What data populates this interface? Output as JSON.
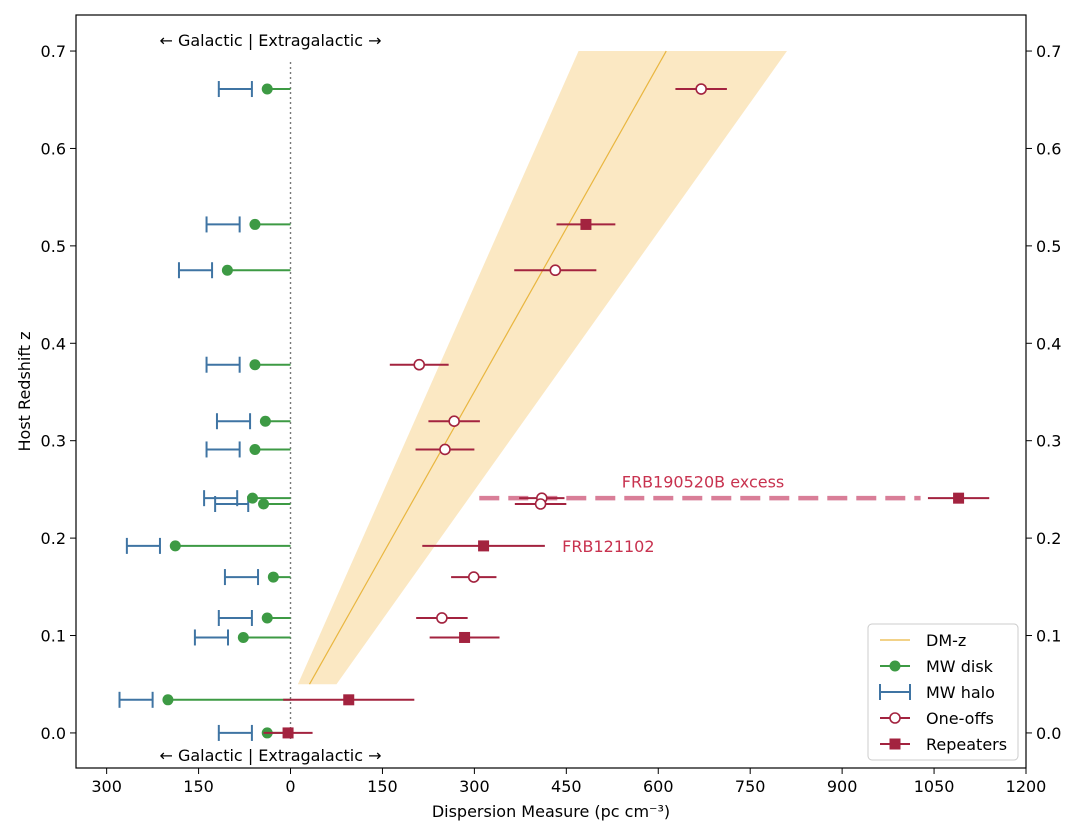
{
  "chart_data": {
    "type": "scatter",
    "xlabel": "Dispersion Measure (pc cm⁻³)",
    "ylabel": "Host Redshift z",
    "xlim": [
      -350,
      1200
    ],
    "ylim": [
      -0.036,
      0.737
    ],
    "x_reversed_negative_side": true,
    "x_ticks": [
      -300,
      -150,
      0,
      150,
      300,
      450,
      600,
      750,
      900,
      1050,
      1200
    ],
    "x_tick_labels": [
      "300",
      "150",
      "0",
      "150",
      "300",
      "450",
      "600",
      "750",
      "900",
      "1050",
      "1200"
    ],
    "y_ticks": [
      0.0,
      0.1,
      0.2,
      0.3,
      0.4,
      0.5,
      0.6,
      0.7
    ],
    "y_tick_labels": [
      "0.0",
      "0.1",
      "0.2",
      "0.3",
      "0.4",
      "0.5",
      "0.6",
      "0.7"
    ],
    "grid": false,
    "top_annotation": "← Galactic | Extragalactic →",
    "bottom_annotation": "← Galactic | Extragalactic →",
    "dmz_curve": {
      "name": "DM-z",
      "color": "#e9b640",
      "band_color": "#fbe8c3",
      "line": [
        [
          31,
          0.05
        ],
        [
          613,
          0.7
        ]
      ],
      "band": [
        [
          12,
          0.05
        ],
        [
          470,
          0.7
        ],
        [
          810,
          0.7
        ],
        [
          75,
          0.05
        ]
      ]
    },
    "mw_disk": {
      "name": "MW disk",
      "color": "#3d9a44",
      "points": [
        {
          "x": -38,
          "z": 0.661
        },
        {
          "x": -58,
          "z": 0.522
        },
        {
          "x": -103,
          "z": 0.475
        },
        {
          "x": -58,
          "z": 0.378
        },
        {
          "x": -41,
          "z": 0.32
        },
        {
          "x": -58,
          "z": 0.291
        },
        {
          "x": -62,
          "z": 0.241
        },
        {
          "x": -44,
          "z": 0.235
        },
        {
          "x": -188,
          "z": 0.192
        },
        {
          "x": -28,
          "z": 0.16
        },
        {
          "x": -38,
          "z": 0.118
        },
        {
          "x": -77,
          "z": 0.098
        },
        {
          "x": -200,
          "z": 0.034
        },
        {
          "x": -38,
          "z": 0.0
        }
      ]
    },
    "mw_halo": {
      "name": "MW halo",
      "color": "#3f74a3",
      "ranges": [
        {
          "x1": -117,
          "x2": -63,
          "z": 0.661
        },
        {
          "x1": -137,
          "x2": -83,
          "z": 0.522
        },
        {
          "x1": -182,
          "x2": -128,
          "z": 0.475
        },
        {
          "x1": -137,
          "x2": -83,
          "z": 0.378
        },
        {
          "x1": -120,
          "x2": -66,
          "z": 0.32
        },
        {
          "x1": -137,
          "x2": -83,
          "z": 0.291
        },
        {
          "x1": -141,
          "x2": -87,
          "z": 0.241
        },
        {
          "x1": -123,
          "x2": -69,
          "z": 0.235
        },
        {
          "x1": -267,
          "x2": -213,
          "z": 0.192
        },
        {
          "x1": -107,
          "x2": -53,
          "z": 0.16
        },
        {
          "x1": -117,
          "x2": -63,
          "z": 0.118
        },
        {
          "x1": -156,
          "x2": -102,
          "z": 0.098
        },
        {
          "x1": -279,
          "x2": -225,
          "z": 0.034
        },
        {
          "x1": -117,
          "x2": -63,
          "z": 0.0
        }
      ]
    },
    "one_offs": {
      "name": "One-offs",
      "color": "#a3233f",
      "points": [
        {
          "x": 670,
          "z": 0.661,
          "xerr": 42
        },
        {
          "x": 432,
          "z": 0.475,
          "xerr": 67
        },
        {
          "x": 210,
          "z": 0.378,
          "xerr": 48
        },
        {
          "x": 267,
          "z": 0.32,
          "xerr": 42
        },
        {
          "x": 252,
          "z": 0.291,
          "xerr": 48
        },
        {
          "x": 410,
          "z": 0.241,
          "xerr": 37
        },
        {
          "x": 408,
          "z": 0.235,
          "xerr": 42
        },
        {
          "x": 299,
          "z": 0.16,
          "xerr": 37
        },
        {
          "x": 247,
          "z": 0.118,
          "xerr": 42
        }
      ]
    },
    "repeaters": {
      "name": "Repeaters",
      "color": "#a3233f",
      "points": [
        {
          "x": 482,
          "z": 0.522,
          "xerr": 48
        },
        {
          "x": 1090,
          "z": 0.241,
          "xerr": 50
        },
        {
          "x": 315,
          "z": 0.192,
          "xerr": 100
        },
        {
          "x": 284,
          "z": 0.098,
          "xerr": 57
        },
        {
          "x": 95,
          "z": 0.034,
          "xerr": 107
        },
        {
          "x": -4,
          "z": 0.0,
          "xerr": 40
        }
      ]
    },
    "frb190520b_excess": {
      "label": "FRB190520B excess",
      "color": "#d97e98",
      "x1": 308,
      "x2": 1028,
      "z": 0.241,
      "label_x": 673,
      "label_z": 0.254
    },
    "frb121102_label": {
      "label": "FRB121102",
      "color": "#c8324f",
      "x": 437,
      "z": 0.192
    },
    "legend": {
      "placement": "lower-right",
      "entries": [
        "DM-z",
        "MW disk",
        "MW halo",
        "One-offs",
        "Repeaters"
      ]
    }
  }
}
